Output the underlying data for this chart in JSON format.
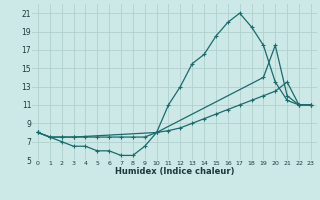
{
  "xlabel": "Humidex (Indice chaleur)",
  "bg_color": "#cce9e8",
  "grid_color": "#b0d0ce",
  "line_color": "#1a6b6b",
  "xlim": [
    -0.5,
    23.5
  ],
  "ylim": [
    5,
    22
  ],
  "yticks": [
    5,
    7,
    9,
    11,
    13,
    15,
    17,
    19,
    21
  ],
  "xticks": [
    0,
    1,
    2,
    3,
    4,
    5,
    6,
    7,
    8,
    9,
    10,
    11,
    12,
    13,
    14,
    15,
    16,
    17,
    18,
    19,
    20,
    21,
    22,
    23
  ],
  "series": [
    {
      "x": [
        0,
        1,
        2,
        3,
        4,
        5,
        6,
        7,
        8,
        9,
        10,
        11,
        12,
        13,
        14,
        15,
        16,
        17,
        18,
        19,
        20,
        21,
        22,
        23
      ],
      "y": [
        8.0,
        7.5,
        7.5,
        7.5,
        7.5,
        7.5,
        7.5,
        7.5,
        7.5,
        7.5,
        8.0,
        8.2,
        8.5,
        9.0,
        9.5,
        10.0,
        10.5,
        11.0,
        11.5,
        12.0,
        12.5,
        13.5,
        11.0,
        11.0
      ]
    },
    {
      "x": [
        0,
        1,
        2,
        3,
        10,
        11,
        12,
        13,
        14,
        15,
        16,
        17,
        18,
        19,
        20,
        21,
        22,
        23
      ],
      "y": [
        8.0,
        7.5,
        7.5,
        7.5,
        8.0,
        11.0,
        13.0,
        15.5,
        16.5,
        18.5,
        20.0,
        21.0,
        19.5,
        17.5,
        13.5,
        11.5,
        11.0,
        11.0
      ]
    },
    {
      "x": [
        0,
        2,
        3,
        4,
        5,
        6,
        7,
        8,
        9,
        10,
        19,
        20,
        21,
        22,
        23
      ],
      "y": [
        8.0,
        7.0,
        6.5,
        6.5,
        6.0,
        6.0,
        5.5,
        5.5,
        6.5,
        8.0,
        14.0,
        17.5,
        12.0,
        11.0,
        11.0
      ]
    }
  ]
}
